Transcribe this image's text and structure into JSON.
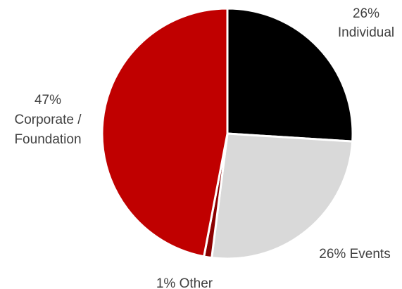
{
  "chart_data": {
    "type": "pie",
    "title": "",
    "slices": [
      {
        "name": "Individual",
        "value": 26,
        "color": "#000000",
        "label_lines": [
          "26%",
          "Individual"
        ]
      },
      {
        "name": "Events",
        "value": 26,
        "color": "#d9d9d9",
        "label_lines": [
          "26% Events"
        ]
      },
      {
        "name": "Other",
        "value": 1,
        "color": "#8b0000",
        "label_lines": [
          "1% Other"
        ]
      },
      {
        "name": "Corporate / Foundation",
        "value": 47,
        "color": "#c00000",
        "label_lines": [
          "47%",
          "Corporate /",
          "Foundation"
        ]
      }
    ],
    "start_angle_deg": 0,
    "direction": "clockwise",
    "legend": "none",
    "grid": false
  }
}
